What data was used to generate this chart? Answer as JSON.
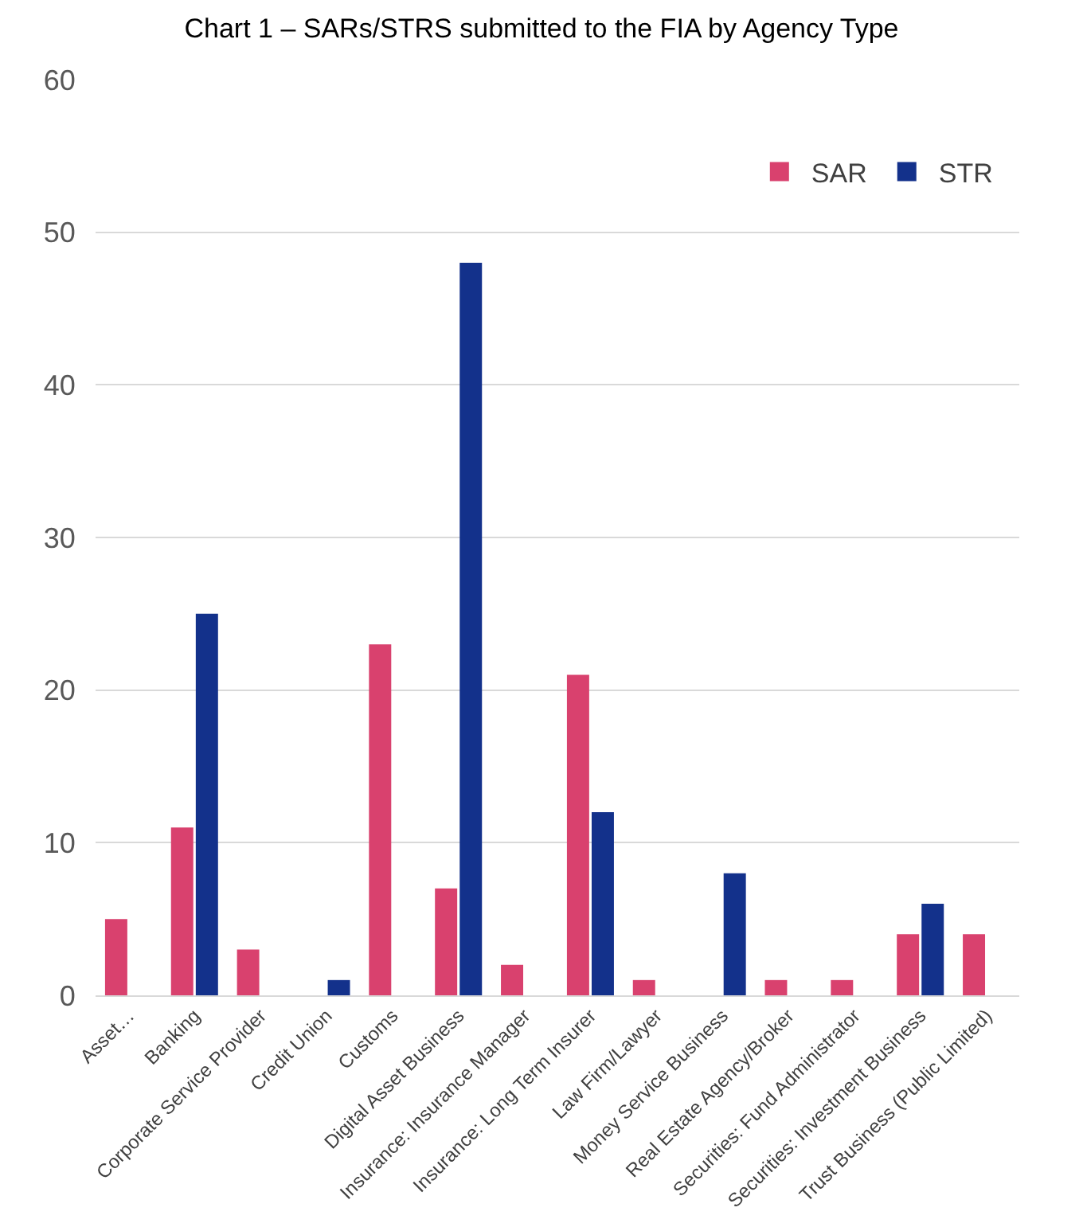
{
  "chart_data": {
    "type": "bar",
    "title": "Chart 1 – SARs/STRS submitted to the FIA by Agency Type",
    "categories": [
      "Asset…",
      "Banking",
      "Corporate Service Provider",
      "Credit Union",
      "Customs",
      "Digital Asset Business",
      "Insurance: Insurance Manager",
      "Insurance: Long Term Insurer",
      "Law Firm/Lawyer",
      "Money Service Business",
      "Real Estate Agency/Broker",
      "Securities: Fund Administrator",
      "Securities: Investment Business",
      "Trust Business (Public Limited)"
    ],
    "series": [
      {
        "name": "SAR",
        "color": "#d9416e",
        "values": [
          5,
          11,
          3,
          null,
          23,
          7,
          2,
          21,
          1,
          null,
          1,
          1,
          4,
          4
        ]
      },
      {
        "name": "STR",
        "color": "#13318b",
        "values": [
          null,
          25,
          null,
          1,
          null,
          48,
          null,
          12,
          null,
          8,
          null,
          null,
          6,
          null
        ]
      }
    ],
    "ylim": [
      0,
      60
    ],
    "yticks": [
      0,
      10,
      20,
      30,
      40,
      50,
      60
    ],
    "grid": "y",
    "legend": "top right"
  }
}
